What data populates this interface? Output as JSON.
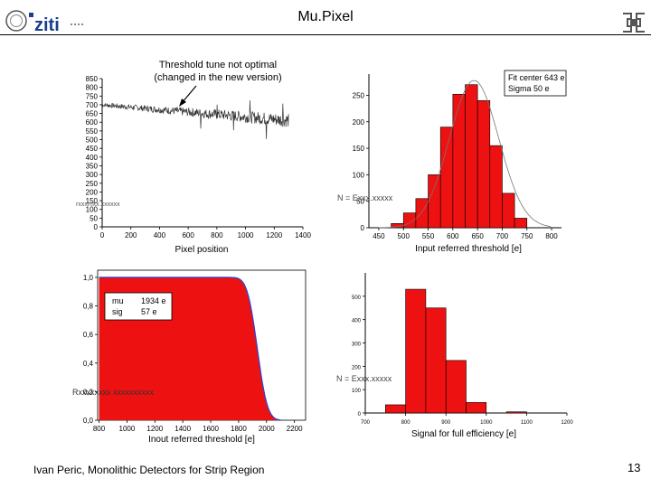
{
  "header": {
    "title": "Mu.Pixel",
    "logo_text": "ziti"
  },
  "annotation": {
    "line1": "Threshold tune not optimal",
    "line2": "(changed in the new version)"
  },
  "footer": {
    "author": "Ivan Peric, Monolithic Detectors for Strip Region",
    "page": "13"
  },
  "colors": {
    "bar": "#ee1111",
    "fit": "#777777",
    "trace": "#333333",
    "curve": "#3344cc",
    "line": "#000000"
  },
  "chart_data": [
    {
      "type": "line",
      "name": "threshold-vs-pixel",
      "xlabel": "Pixel position",
      "ylabel_garbled": "rxxxmxx.xxxxxx",
      "x_ticks": [
        "0",
        "200",
        "400",
        "600",
        "800",
        "1000",
        "1200",
        "1400"
      ],
      "y_ticks": [
        "0",
        "50",
        "100",
        "150",
        "200",
        "250",
        "300",
        "350",
        "400",
        "450",
        "500",
        "550",
        "600",
        "650",
        "700",
        "750",
        "800",
        "850"
      ],
      "xlim": [
        0,
        1400
      ],
      "ylim": [
        0,
        850
      ],
      "series": [
        {
          "name": "threshold",
          "x_range": [
            0,
            1300
          ],
          "start": 700,
          "end": 610,
          "noise_start": 12,
          "noise_end": 40
        }
      ]
    },
    {
      "type": "bar",
      "name": "threshold-histogram",
      "xlabel": "Input referred threshold [e]",
      "ylabel_garbled": "N = Exxx.xxxxx",
      "x_ticks": [
        "450",
        "500",
        "550",
        "600",
        "650",
        "700",
        "750",
        "800"
      ],
      "y_ticks": [
        "0",
        "50",
        "100",
        "150",
        "200",
        "250"
      ],
      "xlim": [
        430,
        820
      ],
      "ylim": [
        0,
        290
      ],
      "bin_width": 25,
      "bins": [
        {
          "x": 487.5,
          "value": 8
        },
        {
          "x": 512.5,
          "value": 28
        },
        {
          "x": 537.5,
          "value": 55
        },
        {
          "x": 562.5,
          "value": 100
        },
        {
          "x": 587.5,
          "value": 190
        },
        {
          "x": 612.5,
          "value": 252
        },
        {
          "x": 637.5,
          "value": 270
        },
        {
          "x": 662.5,
          "value": 240
        },
        {
          "x": 687.5,
          "value": 155
        },
        {
          "x": 712.5,
          "value": 65
        },
        {
          "x": 737.5,
          "value": 18
        }
      ],
      "fit": {
        "center": 643,
        "sigma": 50,
        "peak": 278
      },
      "legend": {
        "line1": "Fit center 643 e",
        "line2": "Sigma 50 e"
      }
    },
    {
      "type": "area",
      "name": "efficiency-curve",
      "xlabel": "Inout referred threshold [e]",
      "ylabel_garbled": "Rxxxxxxxx xxxxxxxxxx",
      "x_ticks": [
        "800",
        "1000",
        "1200",
        "1400",
        "1600",
        "1800",
        "2000",
        "2200"
      ],
      "y_ticks": [
        "0,0",
        "0,2",
        "0,4",
        "0,6",
        "0,8",
        "1,0"
      ],
      "xlim": [
        790,
        2280
      ],
      "ylim": [
        0,
        1.05
      ],
      "fit": {
        "mu": 1934,
        "sigma": 57
      },
      "legend": {
        "k1": "mu",
        "v1": "1934 e",
        "k2": "sig",
        "v2": "57 e"
      }
    },
    {
      "type": "bar",
      "name": "signal-histogram",
      "xlabel": "Signal for full efficiency [e]",
      "ylabel_garbled": "N = Exxx.xxxxx",
      "x_ticks": [
        "700",
        "800",
        "900",
        "1000",
        "1100",
        "1200"
      ],
      "y_ticks": [
        "0",
        "100",
        "200",
        "300",
        "400",
        "500"
      ],
      "xlim": [
        700,
        1200
      ],
      "ylim": [
        0,
        600
      ],
      "bin_width": 50,
      "bins": [
        {
          "x": 775,
          "value": 35
        },
        {
          "x": 825,
          "value": 530
        },
        {
          "x": 875,
          "value": 450
        },
        {
          "x": 925,
          "value": 225
        },
        {
          "x": 975,
          "value": 45
        },
        {
          "x": 1025,
          "value": 0
        },
        {
          "x": 1075,
          "value": 5
        }
      ]
    }
  ]
}
